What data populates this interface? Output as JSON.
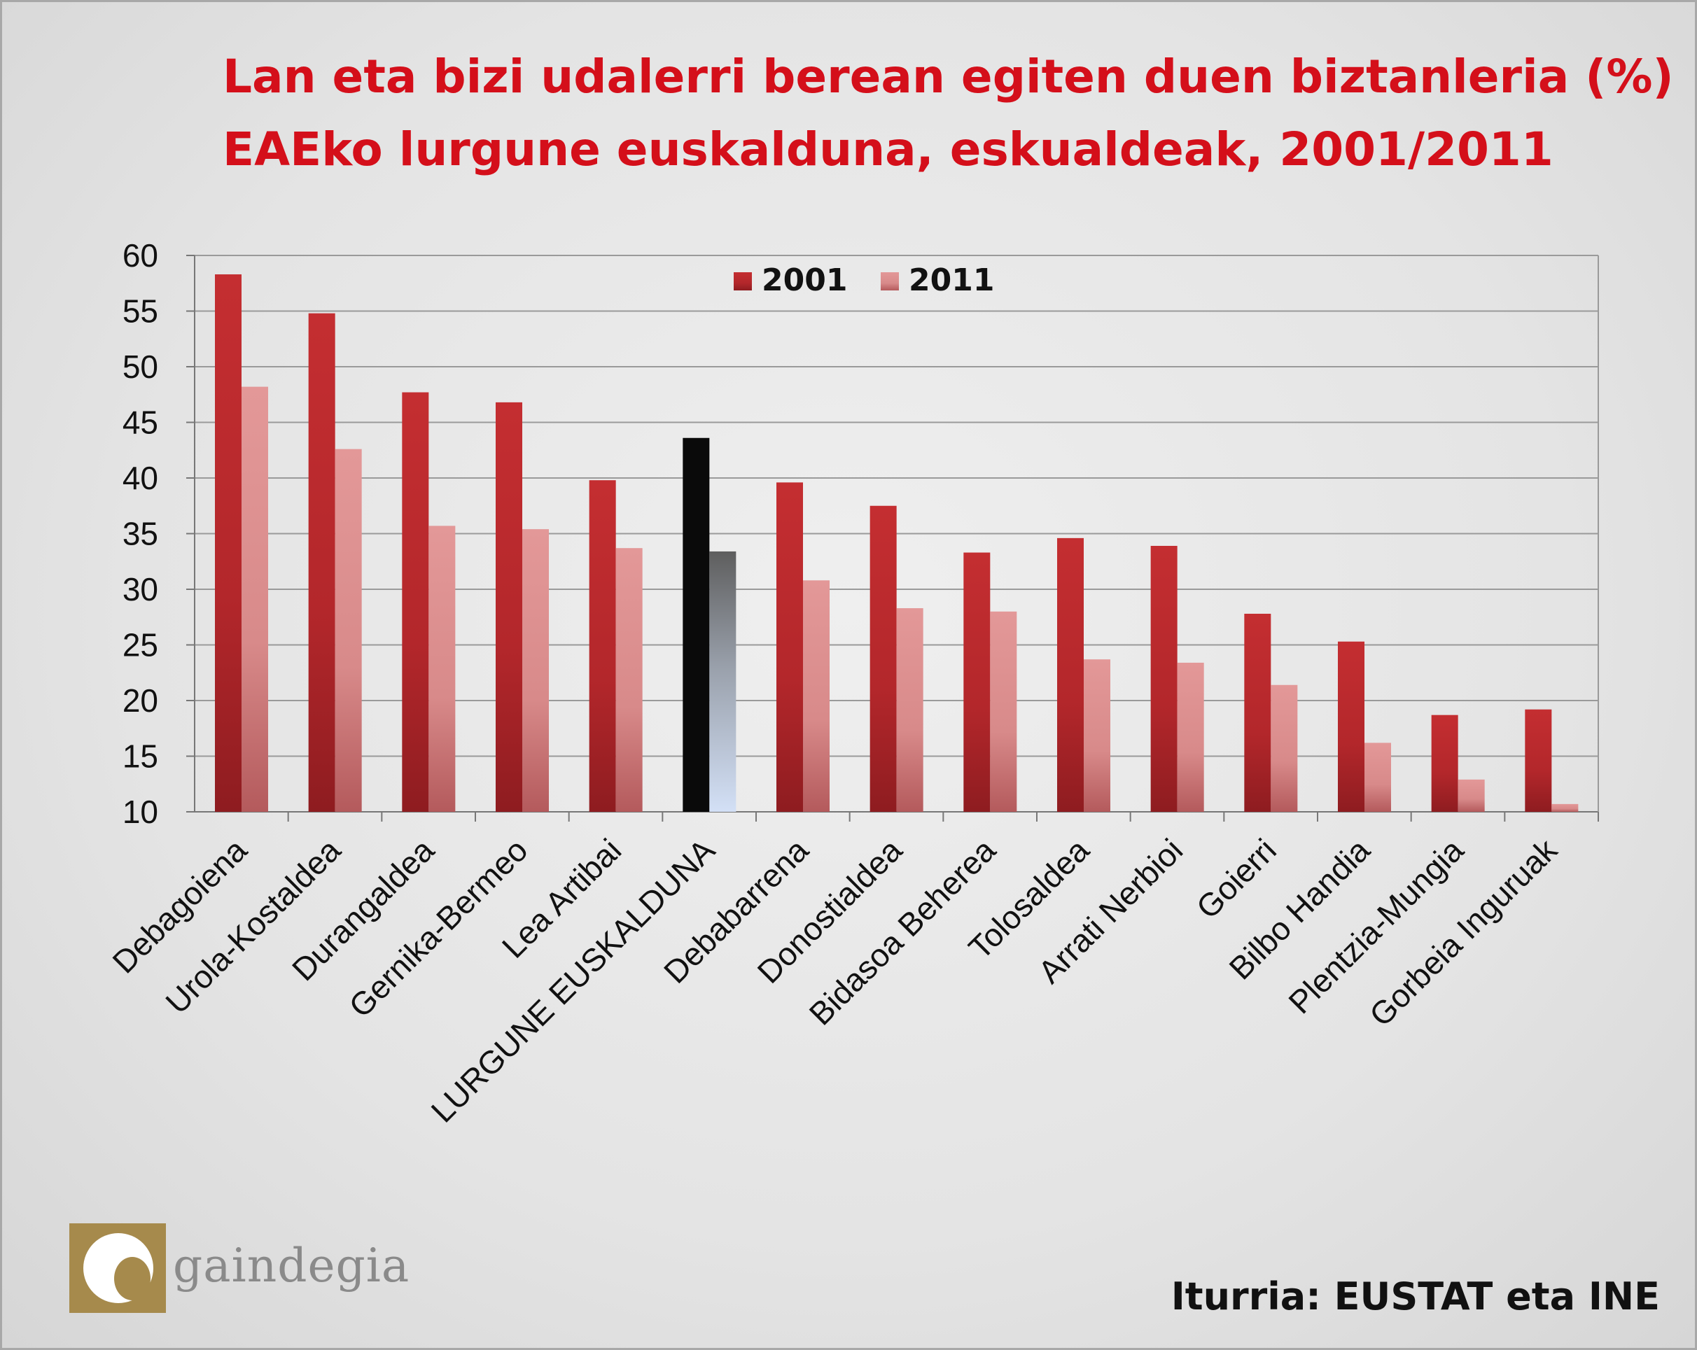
{
  "title_line1": "Lan eta bizi udalerri berean egiten duen biztanleria (%)",
  "title_line2": "EAEko lurgune euskalduna, eskualdeak, 2001/2011",
  "source": "Iturria: EUSTAT eta INE",
  "logo_text": "gaindegia",
  "colors": {
    "series_2001": "#b8282c",
    "series_2011": "#d98b8b",
    "highlight_2001": "#0a0a0a",
    "highlight_2011": "#c8d6ef",
    "title": "#d40f1a"
  },
  "chart_data": {
    "type": "bar",
    "title": "",
    "xlabel": "",
    "ylabel": "",
    "ylim": [
      10,
      60
    ],
    "yticks": [
      10,
      15,
      20,
      25,
      30,
      35,
      40,
      45,
      50,
      55,
      60
    ],
    "grid": true,
    "legend_position": "top-center",
    "highlight_category": "LURGUNE EUSKALDUNA",
    "categories": [
      "Debagoiena",
      "Urola-Kostaldea",
      "Durangaldea",
      "Gernika-Bermeo",
      "Lea Artibai",
      "LURGUNE EUSKALDUNA",
      "Debabarrena",
      "Donostialdea",
      "Bidasoa Beherea",
      "Tolosaldea",
      "Arrati Nerbioi",
      "Goierri",
      "Bilbo Handia",
      "Plentzia-Mungia",
      "Gorbeia Inguruak"
    ],
    "series": [
      {
        "name": "2001",
        "values": [
          58.3,
          54.8,
          47.7,
          46.8,
          39.8,
          43.6,
          39.6,
          37.5,
          33.3,
          34.6,
          33.9,
          27.8,
          25.3,
          18.7,
          19.2
        ]
      },
      {
        "name": "2011",
        "values": [
          48.2,
          42.6,
          35.7,
          35.4,
          33.7,
          33.4,
          30.8,
          28.3,
          28.0,
          23.7,
          23.4,
          21.4,
          16.2,
          12.9,
          10.7
        ]
      }
    ]
  }
}
